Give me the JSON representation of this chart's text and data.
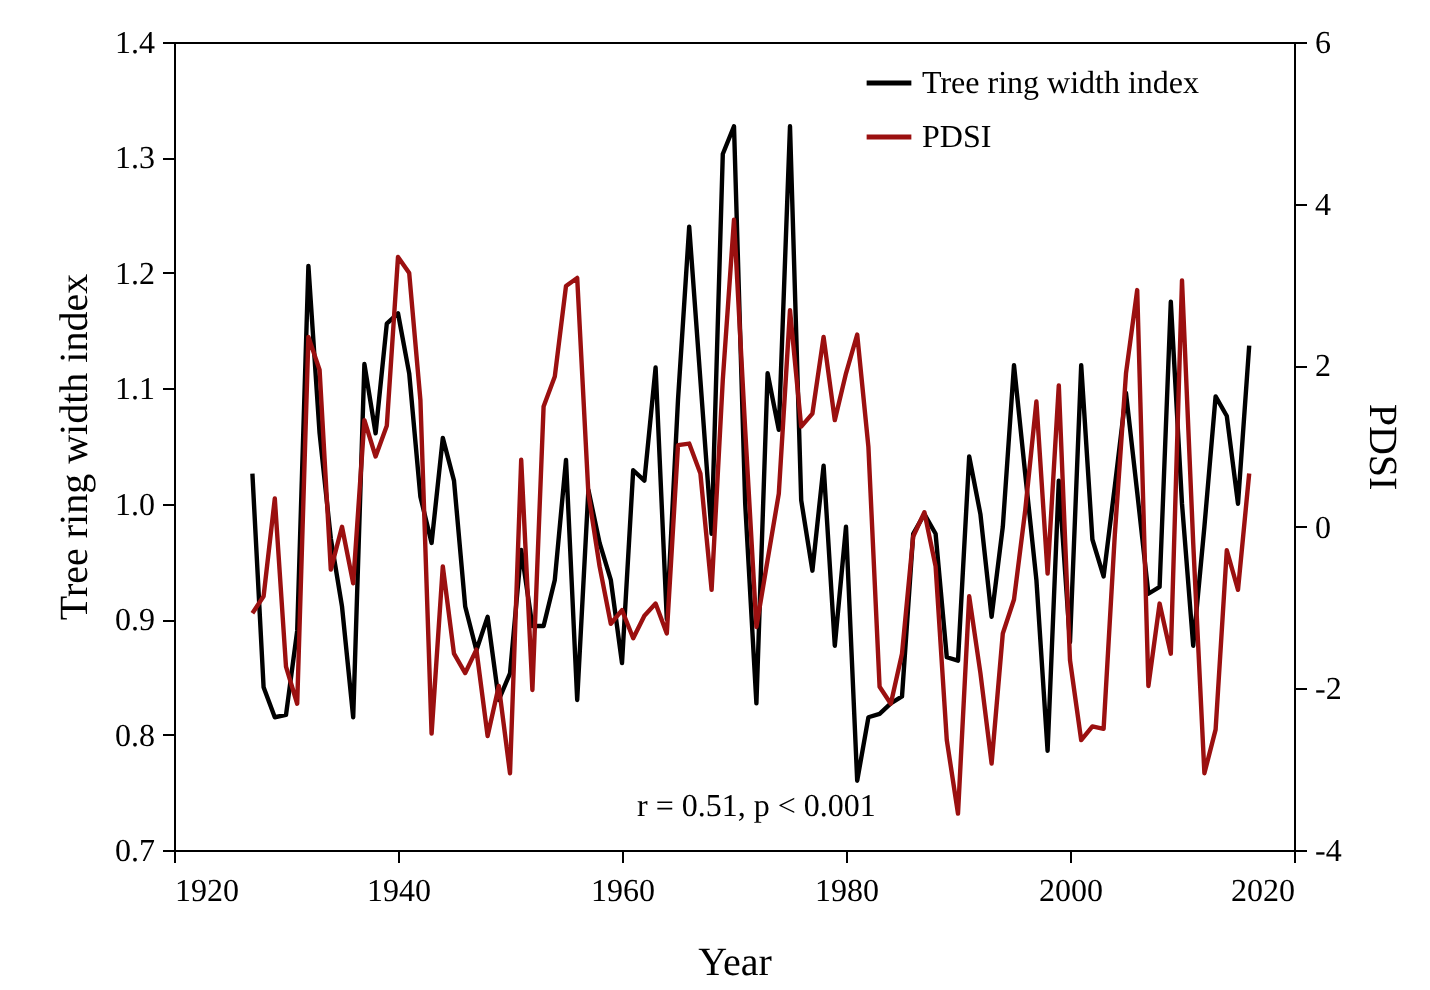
{
  "chart_data": {
    "type": "line",
    "xlabel": "Year",
    "ylabel": "Tree ring width index",
    "y2label": "PDSI",
    "x": [
      1927,
      1928,
      1929,
      1930,
      1931,
      1932,
      1933,
      1934,
      1935,
      1936,
      1937,
      1938,
      1939,
      1940,
      1941,
      1942,
      1943,
      1944,
      1945,
      1946,
      1947,
      1948,
      1949,
      1950,
      1951,
      1952,
      1953,
      1954,
      1955,
      1956,
      1957,
      1958,
      1959,
      1960,
      1961,
      1962,
      1963,
      1964,
      1965,
      1966,
      1967,
      1968,
      1969,
      1970,
      1971,
      1972,
      1973,
      1974,
      1975,
      1976,
      1977,
      1978,
      1979,
      1980,
      1981,
      1982,
      1983,
      1984,
      1985,
      1986,
      1987,
      1988,
      1989,
      1990,
      1991,
      1992,
      1993,
      1994,
      1995,
      1996,
      1997,
      1998,
      1999,
      2000,
      2001,
      2002,
      2003,
      2004,
      2005,
      2006,
      2007,
      2008,
      2009,
      2010,
      2011,
      2012,
      2013,
      2014,
      2015,
      2016
    ],
    "series": [
      {
        "name": "Tree ring width index",
        "color": "#000000",
        "values": [
          1.026,
          0.841,
          0.815,
          0.817,
          0.89,
          1.206,
          1.061,
          0.97,
          0.911,
          0.815,
          1.121,
          1.061,
          1.156,
          1.165,
          1.113,
          1.006,
          0.966,
          1.057,
          1.02,
          0.911,
          0.873,
          0.902,
          0.83,
          0.853,
          0.96,
          0.894,
          0.894,
          0.934,
          1.038,
          0.83,
          1.012,
          0.966,
          0.934,
          0.862,
          1.029,
          1.02,
          1.118,
          0.9,
          1.09,
          1.24,
          1.107,
          0.974,
          1.303,
          1.327,
          1.0,
          0.827,
          1.113,
          1.064,
          1.327,
          1.003,
          0.942,
          1.033,
          0.877,
          0.98,
          0.76,
          0.815,
          0.818,
          0.827,
          0.833,
          0.974,
          0.991,
          0.974,
          0.867,
          0.864,
          1.041,
          0.991,
          0.902,
          0.98,
          1.12,
          1.026,
          0.934,
          0.786,
          1.02,
          0.88,
          1.12,
          0.969,
          0.937,
          1.015,
          1.096,
          1.01,
          0.922,
          0.928,
          1.175,
          1.0,
          0.877,
          0.98,
          1.093,
          1.076,
          1.0,
          1.137
        ]
      },
      {
        "name": "PDSI",
        "color": "#9b1010",
        "axis": "y2",
        "values": [
          -1.07,
          -0.86,
          0.35,
          -1.73,
          -2.19,
          2.35,
          1.94,
          -0.53,
          0.0,
          -0.7,
          1.32,
          0.87,
          1.25,
          3.34,
          3.14,
          1.57,
          -2.56,
          -0.49,
          -1.57,
          -1.81,
          -1.52,
          -2.59,
          -1.97,
          -3.05,
          0.83,
          -2.02,
          1.49,
          1.86,
          2.98,
          3.08,
          0.41,
          -0.49,
          -1.2,
          -1.03,
          -1.38,
          -1.1,
          -0.95,
          -1.32,
          1.01,
          1.03,
          0.66,
          -0.78,
          1.82,
          3.8,
          1.2,
          -1.24,
          -0.41,
          0.41,
          2.68,
          1.24,
          1.4,
          2.35,
          1.32,
          1.9,
          2.38,
          0.99,
          -1.98,
          -2.19,
          -1.57,
          -0.12,
          0.18,
          -0.49,
          -2.64,
          -3.55,
          -0.86,
          -1.81,
          -2.93,
          -1.32,
          -0.9,
          0.2,
          1.55,
          -0.58,
          1.75,
          -1.65,
          -2.64,
          -2.47,
          -2.5,
          -0.1,
          1.9,
          2.93,
          -1.97,
          -0.95,
          -1.57,
          3.05,
          -0.2,
          -3.05,
          -2.51,
          -0.29,
          -0.78,
          0.66
        ]
      }
    ],
    "xlim": [
      1920,
      2020
    ],
    "xticks": [
      1920,
      1940,
      1960,
      1980,
      2000,
      2020
    ],
    "ylim": [
      0.7,
      1.4
    ],
    "yticks": [
      0.7,
      0.8,
      0.9,
      {
        "value": 1,
        "label": "1.0"
      },
      1.1,
      1.2,
      1.3,
      1.4
    ],
    "y2lim": [
      -4,
      6
    ],
    "y2ticks": [
      -4,
      -2,
      0,
      2,
      4,
      6
    ],
    "legend": "top right",
    "grid": false,
    "marker": "none",
    "line_style": "solid",
    "annotations": [
      "r = 0.51, p < 0.001"
    ]
  }
}
